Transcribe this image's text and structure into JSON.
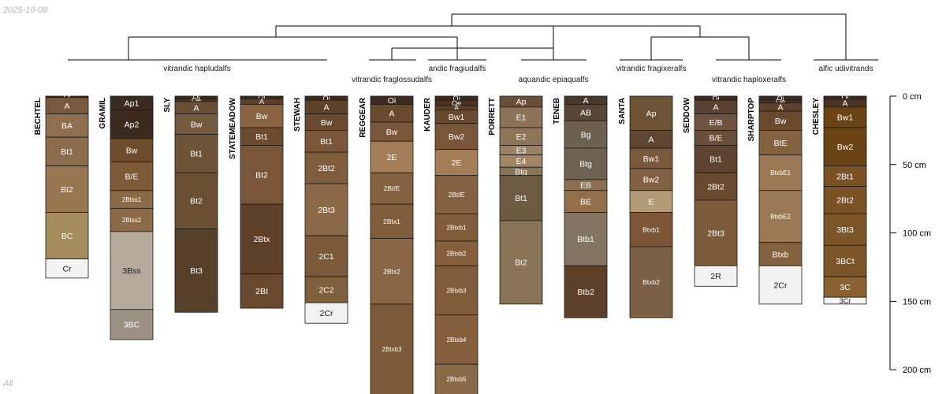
{
  "date_stamp": "2025-10-08",
  "footer_label": "All",
  "depth_axis": {
    "unit": "cm",
    "ticks": [
      {
        "value": 0,
        "label": "0 cm"
      },
      {
        "value": 50,
        "label": "50 cm"
      },
      {
        "value": 100,
        "label": "100 cm"
      },
      {
        "value": 150,
        "label": "150 cm"
      },
      {
        "value": 200,
        "label": "200 cm"
      }
    ]
  },
  "groups": [
    {
      "label": "vitrandic hapludalfs"
    },
    {
      "label": "vitrandic fraglossudalfs"
    },
    {
      "label": "andic fragiudalfs"
    },
    {
      "label": "aquandic epiaqualfs"
    },
    {
      "label": "vitrandic fragixeralfs"
    },
    {
      "label": "vitrandic haploxeralfs"
    },
    {
      "label": "alfic udivitrands"
    }
  ],
  "profiles": [
    {
      "name": "BECHTEL",
      "horizons": [
        {
          "name": "Oi",
          "top": 0,
          "bottom": 1,
          "color": "#3d2b1f"
        },
        {
          "name": "A",
          "top": 1,
          "bottom": 13,
          "color": "#7a5a3e"
        },
        {
          "name": "BA",
          "top": 13,
          "bottom": 30,
          "color": "#8e7050"
        },
        {
          "name": "Bt1",
          "top": 30,
          "bottom": 51,
          "color": "#8b6d4e"
        },
        {
          "name": "Bt2",
          "top": 51,
          "bottom": 85,
          "color": "#977650"
        },
        {
          "name": "BC",
          "top": 85,
          "bottom": 119,
          "color": "#a68d5e"
        },
        {
          "name": "Cr",
          "top": 119,
          "bottom": 133,
          "color": "#f2f2f2"
        }
      ]
    },
    {
      "name": "GRAMIL",
      "horizons": [
        {
          "name": "Ap1",
          "top": 0,
          "bottom": 10,
          "color": "#3b2a1e"
        },
        {
          "name": "Ap2",
          "top": 10,
          "bottom": 31,
          "color": "#3b2a1e"
        },
        {
          "name": "Bw",
          "top": 31,
          "bottom": 48,
          "color": "#6e4d2e"
        },
        {
          "name": "B/E",
          "top": 48,
          "bottom": 69,
          "color": "#7c5a38"
        },
        {
          "name": "2Btss1",
          "top": 69,
          "bottom": 82,
          "color": "#8a6a47"
        },
        {
          "name": "2Btss2",
          "top": 82,
          "bottom": 99,
          "color": "#8a6a47"
        },
        {
          "name": "3Bss",
          "top": 99,
          "bottom": 156,
          "color": "#b4aa9c"
        },
        {
          "name": "3BC",
          "top": 156,
          "bottom": 178,
          "color": "#9a9184"
        }
      ]
    },
    {
      "name": "SLY",
      "horizons": [
        {
          "name": "Oi",
          "top": 0,
          "bottom": 2,
          "color": "#3d2b1f"
        },
        {
          "name": "Oe",
          "top": 2,
          "bottom": 4,
          "color": "#4a3323"
        },
        {
          "name": "A",
          "top": 4,
          "bottom": 13,
          "color": "#6a4e35"
        },
        {
          "name": "Bw",
          "top": 13,
          "bottom": 28,
          "color": "#745a3e"
        },
        {
          "name": "Bt1",
          "top": 28,
          "bottom": 56,
          "color": "#6e5337"
        },
        {
          "name": "Bt2",
          "top": 56,
          "bottom": 97,
          "color": "#6a4f33"
        },
        {
          "name": "Bt3",
          "top": 97,
          "bottom": 158,
          "color": "#57402a"
        }
      ]
    },
    {
      "name": "STATEMEADOW",
      "horizons": [
        {
          "name": "Oi",
          "top": 0,
          "bottom": 2,
          "color": "#3d2b1f"
        },
        {
          "name": "A",
          "top": 2,
          "bottom": 6,
          "color": "#5c3f2a"
        },
        {
          "name": "Bw",
          "top": 6,
          "bottom": 23,
          "color": "#8a6440"
        },
        {
          "name": "Bt1",
          "top": 23,
          "bottom": 36,
          "color": "#6e4b2e"
        },
        {
          "name": "Bt2",
          "top": 36,
          "bottom": 79,
          "color": "#7a5638"
        },
        {
          "name": "2Btx",
          "top": 79,
          "bottom": 130,
          "color": "#5e3f28"
        },
        {
          "name": "2Bt",
          "top": 130,
          "bottom": 155,
          "color": "#6a4a2e"
        }
      ]
    },
    {
      "name": "STEWAH",
      "horizons": [
        {
          "name": "Oi",
          "top": 0,
          "bottom": 3,
          "color": "#3d2b1f"
        },
        {
          "name": "A",
          "top": 3,
          "bottom": 13,
          "color": "#5e4129"
        },
        {
          "name": "Bw",
          "top": 13,
          "bottom": 25,
          "color": "#6a4a2e"
        },
        {
          "name": "Bt1",
          "top": 25,
          "bottom": 41,
          "color": "#7a5638"
        },
        {
          "name": "2Bt2",
          "top": 41,
          "bottom": 64,
          "color": "#7f5d3b"
        },
        {
          "name": "2Bt3",
          "top": 64,
          "bottom": 102,
          "color": "#8a6947"
        },
        {
          "name": "2C1",
          "top": 102,
          "bottom": 132,
          "color": "#7a5a38"
        },
        {
          "name": "2C2",
          "top": 132,
          "bottom": 151,
          "color": "#7f5f3c"
        },
        {
          "name": "2Cr",
          "top": 151,
          "bottom": 166,
          "color": "#f2f2f2"
        }
      ]
    },
    {
      "name": "REGGEAR",
      "horizons": [
        {
          "name": "Oi",
          "top": 0,
          "bottom": 6,
          "color": "#3d2b1f"
        },
        {
          "name": "A",
          "top": 6,
          "bottom": 19,
          "color": "#6a4a2e"
        },
        {
          "name": "Bw",
          "top": 19,
          "bottom": 33,
          "color": "#7a5638"
        },
        {
          "name": "2E",
          "top": 33,
          "bottom": 56,
          "color": "#a37e57"
        },
        {
          "name": "2Bt/E",
          "top": 56,
          "bottom": 79,
          "color": "#84623f"
        },
        {
          "name": "2Btx1",
          "top": 79,
          "bottom": 104,
          "color": "#7f5d3b"
        },
        {
          "name": "2Btx2",
          "top": 104,
          "bottom": 152,
          "color": "#8a6744"
        },
        {
          "name": "2Btxb3",
          "top": 152,
          "bottom": 218,
          "color": "#7a5a38"
        }
      ]
    },
    {
      "name": "KAUDER",
      "horizons": [
        {
          "name": "Oi",
          "top": 0,
          "bottom": 3,
          "color": "#3d2b1f"
        },
        {
          "name": "Oe",
          "top": 3,
          "bottom": 7,
          "color": "#4a3323"
        },
        {
          "name": "A",
          "top": 7,
          "bottom": 10,
          "color": "#5e4129"
        },
        {
          "name": "Bw1",
          "top": 10,
          "bottom": 20,
          "color": "#6a4a2e"
        },
        {
          "name": "Bw2",
          "top": 20,
          "bottom": 39,
          "color": "#7a5638"
        },
        {
          "name": "2E",
          "top": 39,
          "bottom": 58,
          "color": "#a37e57"
        },
        {
          "name": "2Bt/E",
          "top": 58,
          "bottom": 86,
          "color": "#84623f"
        },
        {
          "name": "2Btxb1",
          "top": 86,
          "bottom": 106,
          "color": "#7f5d3b"
        },
        {
          "name": "2Btxb2",
          "top": 106,
          "bottom": 124,
          "color": "#855f3c"
        },
        {
          "name": "2Btxb3",
          "top": 124,
          "bottom": 160,
          "color": "#7f5d3b"
        },
        {
          "name": "2Btxb4",
          "top": 160,
          "bottom": 196,
          "color": "#855f3c"
        },
        {
          "name": "2Btxb5",
          "top": 196,
          "bottom": 218,
          "color": "#8a6947"
        }
      ]
    },
    {
      "name": "PORRETT",
      "horizons": [
        {
          "name": "Ap",
          "top": 0,
          "bottom": 8,
          "color": "#6a4e35"
        },
        {
          "name": "E1",
          "top": 8,
          "bottom": 23,
          "color": "#8c7358"
        },
        {
          "name": "E2",
          "top": 23,
          "bottom": 36,
          "color": "#8e7458"
        },
        {
          "name": "E3",
          "top": 36,
          "bottom": 43,
          "color": "#9a8262"
        },
        {
          "name": "E4",
          "top": 43,
          "bottom": 52,
          "color": "#a08664"
        },
        {
          "name": "Btg",
          "top": 52,
          "bottom": 58,
          "color": "#8a7457"
        },
        {
          "name": "Bt1",
          "top": 58,
          "bottom": 91,
          "color": "#6e5a40"
        },
        {
          "name": "Bt2",
          "top": 91,
          "bottom": 152,
          "color": "#8a7457"
        }
      ]
    },
    {
      "name": "TENEB",
      "horizons": [
        {
          "name": "A",
          "top": 0,
          "bottom": 6,
          "color": "#4a3828"
        },
        {
          "name": "AB",
          "top": 6,
          "bottom": 18,
          "color": "#5a4636"
        },
        {
          "name": "Bg",
          "top": 18,
          "bottom": 38,
          "color": "#6c6050"
        },
        {
          "name": "Btg",
          "top": 38,
          "bottom": 61,
          "color": "#6e6252"
        },
        {
          "name": "EB",
          "top": 61,
          "bottom": 69,
          "color": "#8a7050"
        },
        {
          "name": "BE",
          "top": 69,
          "bottom": 85,
          "color": "#93704a"
        },
        {
          "name": "Btb1",
          "top": 85,
          "bottom": 124,
          "color": "#847563"
        },
        {
          "name": "Btb2",
          "top": 124,
          "bottom": 162,
          "color": "#5e3f28"
        }
      ]
    },
    {
      "name": "SANTA",
      "horizons": [
        {
          "name": "Ap",
          "top": 0,
          "bottom": 25,
          "color": "#6e5337"
        },
        {
          "name": "A",
          "top": 25,
          "bottom": 38,
          "color": "#5e4630"
        },
        {
          "name": "Bw1",
          "top": 38,
          "bottom": 53,
          "color": "#7a5a3c"
        },
        {
          "name": "Bw2",
          "top": 53,
          "bottom": 69,
          "color": "#806040"
        },
        {
          "name": "E",
          "top": 69,
          "bottom": 85,
          "color": "#b39a77"
        },
        {
          "name": "Btxb1",
          "top": 85,
          "bottom": 110,
          "color": "#7c5636"
        },
        {
          "name": "Btxb2",
          "top": 110,
          "bottom": 162,
          "color": "#7a5f44"
        }
      ]
    },
    {
      "name": "SEDDOW",
      "horizons": [
        {
          "name": "Oi",
          "top": 0,
          "bottom": 3,
          "color": "#3d2b1f"
        },
        {
          "name": "A",
          "top": 3,
          "bottom": 13,
          "color": "#5a4232"
        },
        {
          "name": "E/B",
          "top": 13,
          "bottom": 25,
          "color": "#6e5440"
        },
        {
          "name": "B/E",
          "top": 25,
          "bottom": 36,
          "color": "#6a4e38"
        },
        {
          "name": "Bt1",
          "top": 36,
          "bottom": 56,
          "color": "#5e4430"
        },
        {
          "name": "2Bt2",
          "top": 56,
          "bottom": 76,
          "color": "#6a4a2e"
        },
        {
          "name": "2Bt3",
          "top": 76,
          "bottom": 124,
          "color": "#7a5a38"
        },
        {
          "name": "2R",
          "top": 124,
          "bottom": 139,
          "color": "#f2f2f2"
        }
      ]
    },
    {
      "name": "SHARPTOP",
      "horizons": [
        {
          "name": "Oi",
          "top": 0,
          "bottom": 3,
          "color": "#3d2b1f"
        },
        {
          "name": "Oe",
          "top": 3,
          "bottom": 5,
          "color": "#4a3323"
        },
        {
          "name": "A",
          "top": 5,
          "bottom": 11,
          "color": "#5e4129"
        },
        {
          "name": "Bw",
          "top": 11,
          "bottom": 25,
          "color": "#6a4a2e"
        },
        {
          "name": "BtE",
          "top": 25,
          "bottom": 43,
          "color": "#84623f"
        },
        {
          "name": "BtxbE1",
          "top": 43,
          "bottom": 69,
          "color": "#9a7a55"
        },
        {
          "name": "BtxbE2",
          "top": 69,
          "bottom": 107,
          "color": "#9a7a55"
        },
        {
          "name": "Btxb",
          "top": 107,
          "bottom": 124,
          "color": "#84623f"
        },
        {
          "name": "2Cr",
          "top": 124,
          "bottom": 152,
          "color": "#f2f2f2"
        }
      ]
    },
    {
      "name": "CHESLEY",
      "horizons": [
        {
          "name": "Oi",
          "top": 0,
          "bottom": 2,
          "color": "#3d2b1f"
        },
        {
          "name": "A",
          "top": 2,
          "bottom": 8,
          "color": "#4a3323"
        },
        {
          "name": "Bw1",
          "top": 8,
          "bottom": 23,
          "color": "#6b4416"
        },
        {
          "name": "Bw2",
          "top": 23,
          "bottom": 51,
          "color": "#6b4416"
        },
        {
          "name": "2Bt1",
          "top": 51,
          "bottom": 66,
          "color": "#7a5224"
        },
        {
          "name": "2Bt2",
          "top": 66,
          "bottom": 86,
          "color": "#7a5224"
        },
        {
          "name": "3Bt3",
          "top": 86,
          "bottom": 109,
          "color": "#7c5628"
        },
        {
          "name": "3BCt",
          "top": 109,
          "bottom": 132,
          "color": "#7c5628"
        },
        {
          "name": "3C",
          "top": 132,
          "bottom": 147,
          "color": "#8a6232"
        },
        {
          "name": "3Cr",
          "top": 147,
          "bottom": 152,
          "color": "#f2f2f2"
        }
      ]
    }
  ]
}
